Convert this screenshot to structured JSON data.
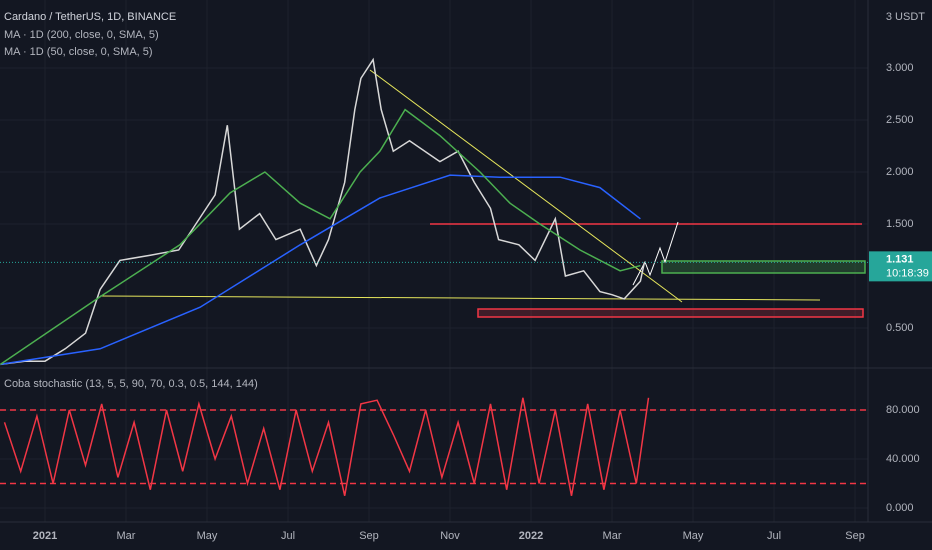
{
  "chart_data": [
    {
      "type": "line",
      "title": "Cardano / TetherUS, 1D, BINANCE",
      "unit_label": "3 USDT",
      "last_price": {
        "value": 1.131,
        "label": "1.131"
      },
      "countdown": "10:18:39",
      "xlim": [
        -1.111,
        20.32
      ],
      "ylim": [
        0.115,
        3.654
      ],
      "yticks": [
        {
          "value": 0.5,
          "label": "0.500"
        },
        {
          "value": 1.5,
          "label": "1.500"
        },
        {
          "value": 2,
          "label": "2.000"
        },
        {
          "value": 2.5,
          "label": "2.500"
        },
        {
          "value": 3,
          "label": "3.000"
        }
      ],
      "series": [
        {
          "color": "#d8d8d8",
          "x": [
            -1.1,
            -0.5,
            0,
            0.5,
            1.0,
            1.36,
            1.85,
            2.6,
            3.3,
            4.2,
            4.5,
            4.8,
            5.3,
            5.7,
            6.3,
            6.7,
            7.0,
            7.4,
            7.65,
            7.8,
            8.1,
            8.3,
            8.6,
            9.0,
            9.75,
            10.2,
            10.6,
            11.0,
            11.2,
            11.7,
            12.1,
            12.6,
            12.85,
            13.3,
            13.7,
            14.0,
            14.3,
            14.7,
            14.8
          ],
          "values": [
            0.15,
            0.18,
            0.18,
            0.3,
            0.45,
            0.87,
            1.15,
            1.2,
            1.25,
            1.78,
            2.45,
            1.45,
            1.6,
            1.35,
            1.45,
            1.1,
            1.35,
            1.9,
            2.6,
            2.9,
            3.08,
            2.6,
            2.2,
            2.3,
            2.1,
            2.2,
            1.9,
            1.65,
            1.35,
            1.3,
            1.15,
            1.55,
            1.0,
            1.05,
            0.85,
            0.82,
            0.78,
            0.95,
            1.131
          ]
        },
        {
          "name": "MA · 1D (200, close, 0, SMA, 5)",
          "color": "#2962ff",
          "x": [
            -1.1,
            1.36,
            3.83,
            6.3,
            8.27,
            10.0,
            11.23,
            12.72,
            13.7,
            14.7
          ],
          "values": [
            0.15,
            0.3,
            0.7,
            1.3,
            1.75,
            1.97,
            1.95,
            1.95,
            1.85,
            1.55
          ]
        },
        {
          "name": "MA · 1D (50, close, 0, SMA, 5)",
          "color": "#4caf50",
          "x": [
            -1.1,
            1.36,
            3.33,
            4.57,
            5.43,
            6.3,
            7.04,
            7.78,
            8.27,
            8.89,
            9.75,
            10.74,
            11.48,
            12.22,
            13.21,
            14.2,
            14.7
          ],
          "values": [
            0.15,
            0.8,
            1.3,
            1.8,
            2.0,
            1.7,
            1.55,
            2.0,
            2.2,
            2.6,
            2.35,
            2.0,
            1.7,
            1.5,
            1.25,
            1.05,
            1.1
          ]
        }
      ]
    },
    {
      "type": "line",
      "title": "Coba stochastic (13, 5, 5, 90, 70, 0.3, 0.5, 144, 144)",
      "xlim": [
        -1.111,
        20.32
      ],
      "ylim": [
        -11.4,
        114.3
      ],
      "yticks": [
        {
          "value": 0,
          "label": "0.000"
        },
        {
          "value": 40,
          "label": "40.000"
        },
        {
          "value": 80,
          "label": "80.000"
        }
      ],
      "levels": [
        20,
        80
      ],
      "xticks": [
        {
          "value": 0,
          "label": "2021"
        },
        {
          "value": 2,
          "label": "Mar"
        },
        {
          "value": 4,
          "label": "May"
        },
        {
          "value": 6,
          "label": "Jul"
        },
        {
          "value": 8,
          "label": "Sep"
        },
        {
          "value": 10,
          "label": "Nov"
        },
        {
          "value": 12,
          "label": "2022"
        },
        {
          "value": 14,
          "label": "Mar"
        },
        {
          "value": 16,
          "label": "May"
        },
        {
          "value": 18,
          "label": "Jul"
        },
        {
          "value": 20,
          "label": "Sep"
        }
      ],
      "series": [
        {
          "color": "#f23645",
          "x": [
            -1.0,
            -0.6,
            -0.2,
            0.2,
            0.6,
            1.0,
            1.4,
            1.8,
            2.2,
            2.6,
            3.0,
            3.4,
            3.8,
            4.2,
            4.6,
            5.0,
            5.4,
            5.8,
            6.2,
            6.6,
            7.0,
            7.4,
            7.8,
            8.2,
            8.6,
            9.0,
            9.4,
            9.8,
            10.2,
            10.6,
            11.0,
            11.4,
            11.8,
            12.2,
            12.6,
            13.0,
            13.4,
            13.8,
            14.2,
            14.6,
            14.9
          ],
          "values": [
            70,
            30,
            75,
            20,
            80,
            35,
            85,
            25,
            70,
            15,
            80,
            30,
            85,
            40,
            75,
            20,
            65,
            15,
            80,
            30,
            70,
            10,
            85,
            88,
            60,
            30,
            80,
            25,
            70,
            20,
            85,
            15,
            90,
            20,
            80,
            10,
            85,
            15,
            80,
            20,
            90
          ]
        }
      ]
    }
  ]
}
